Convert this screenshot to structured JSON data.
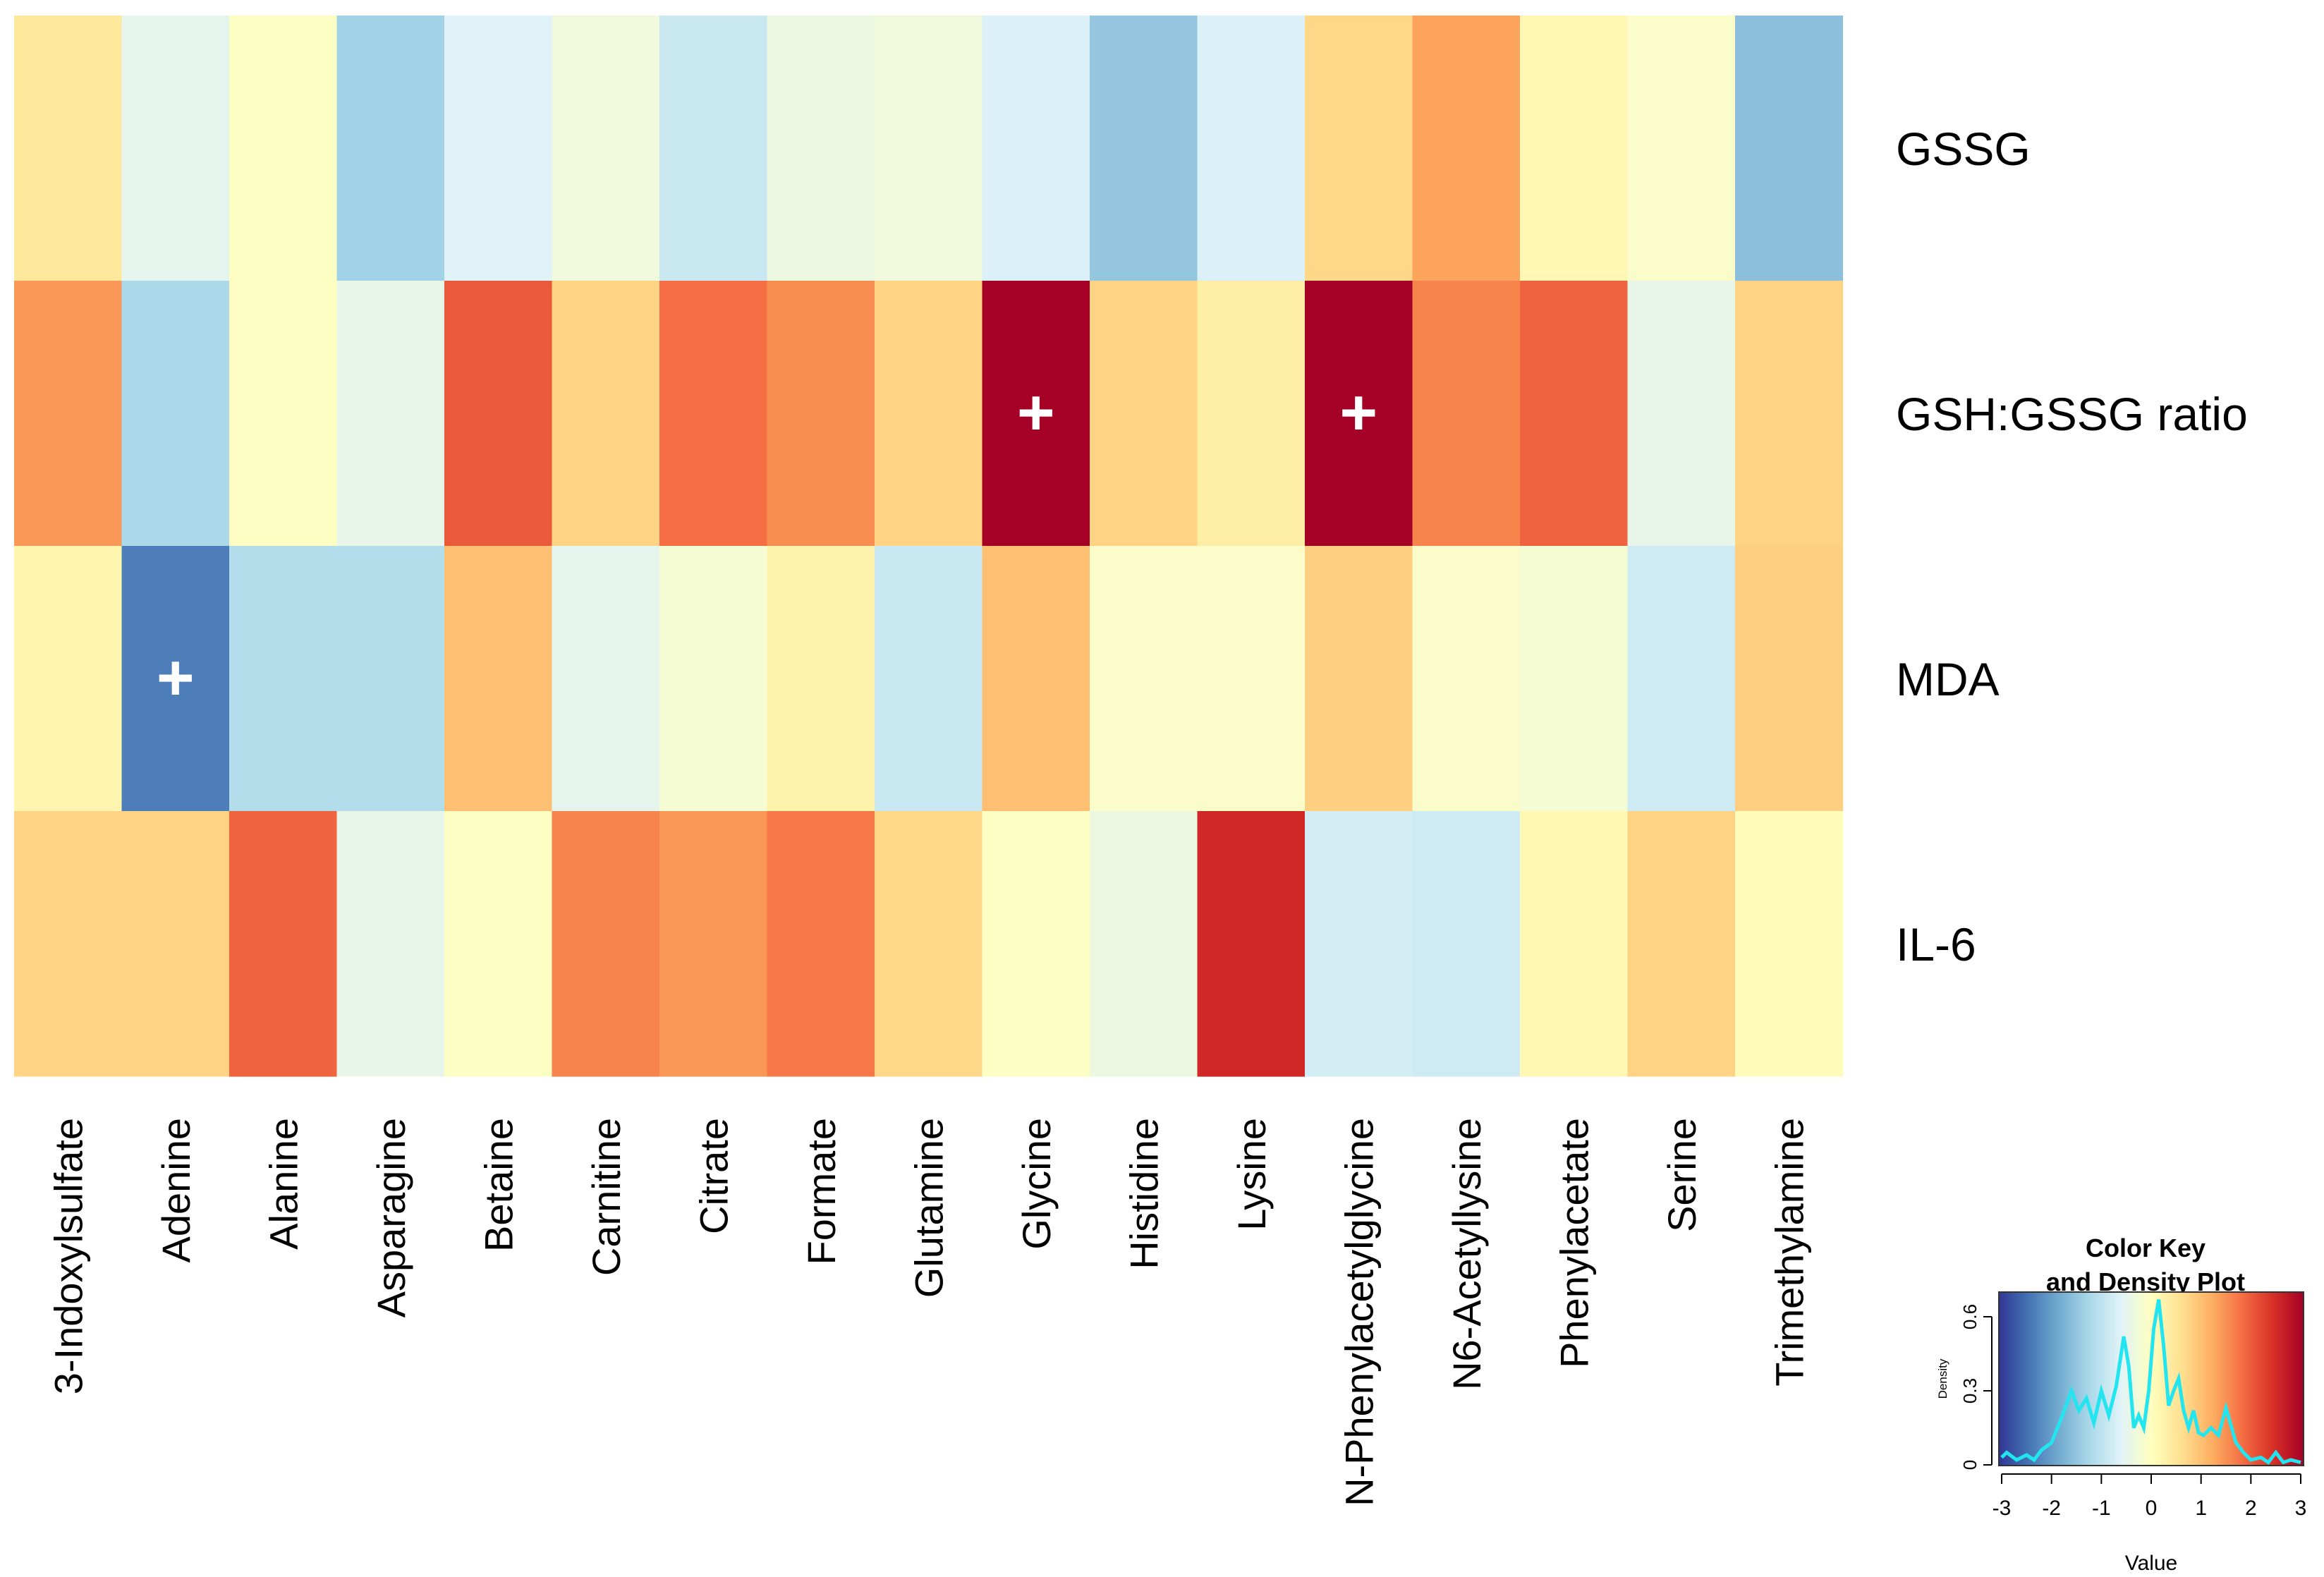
{
  "chart_data": {
    "type": "heatmap",
    "rows": [
      "GSSG",
      "GSH:GSSG ratio",
      "MDA",
      "IL-6"
    ],
    "columns": [
      "3-Indoxylsulfate",
      "Adenine",
      "Alanine",
      "Asparagine",
      "Betaine",
      "Carnitine",
      "Citrate",
      "Formate",
      "Glutamine",
      "Glycine",
      "Histidine",
      "Lysine",
      "N-Phenylacetylglycine",
      "N6-Acetyllysine",
      "Phenylacetate",
      "Serine",
      "Trimethylamine"
    ],
    "values": [
      [
        0.45,
        -0.5,
        -0.05,
        -1.3,
        -0.6,
        -0.3,
        -0.85,
        -0.35,
        -0.3,
        -0.65,
        -1.45,
        -0.65,
        0.7,
        1.3,
        0.15,
        -0.1,
        -1.55
      ],
      [
        1.4,
        -1.2,
        -0.05,
        -0.45,
        2.0,
        0.75,
        1.8,
        1.5,
        0.75,
        3.0,
        0.75,
        0.35,
        3.2,
        1.6,
        1.9,
        -0.45,
        0.75
      ],
      [
        0.2,
        -2.3,
        -1.1,
        -1.1,
        1.0,
        -0.5,
        -0.2,
        0.25,
        -0.85,
        1.0,
        -0.1,
        -0.1,
        0.8,
        -0.1,
        -0.2,
        -0.8,
        0.8
      ],
      [
        0.75,
        0.75,
        1.9,
        -0.45,
        -0.05,
        1.6,
        1.4,
        1.7,
        0.7,
        -0.05,
        -0.35,
        2.5,
        -0.75,
        -0.8,
        0.15,
        0.75,
        0.05
      ]
    ],
    "significance_marks": [
      {
        "row": "GSH:GSSG ratio",
        "column": "Glycine",
        "symbol": "+"
      },
      {
        "row": "GSH:GSSG ratio",
        "column": "N-Phenylacetylglycine",
        "symbol": "+"
      },
      {
        "row": "MDA",
        "column": "Adenine",
        "symbol": "+"
      }
    ],
    "color_key": {
      "title_line1": "Color Key",
      "title_line2": "and Density Plot",
      "xlabel": "Value",
      "ylabel": "Density",
      "xlim": [
        -3,
        3
      ],
      "x_ticks": [
        "-3",
        "-2",
        "-1",
        "0",
        "1",
        "2",
        "3"
      ],
      "ylim": [
        0,
        0.7
      ],
      "y_ticks": [
        "0",
        "0.3",
        "0.6"
      ],
      "colors": [
        "#313695",
        "#4575b4",
        "#74add1",
        "#abd9e9",
        "#e0f3f8",
        "#ffffbf",
        "#fee090",
        "#fdae61",
        "#f46d43",
        "#d73027",
        "#a50026"
      ],
      "density_color": "#22e5f0",
      "density": {
        "x": [
          -3.0,
          -2.9,
          -2.7,
          -2.5,
          -2.35,
          -2.2,
          -2.0,
          -1.8,
          -1.6,
          -1.45,
          -1.3,
          -1.15,
          -1.0,
          -0.85,
          -0.7,
          -0.55,
          -0.45,
          -0.35,
          -0.25,
          -0.15,
          -0.05,
          0.05,
          0.15,
          0.25,
          0.35,
          0.45,
          0.55,
          0.65,
          0.75,
          0.85,
          0.95,
          1.05,
          1.2,
          1.35,
          1.5,
          1.6,
          1.7,
          1.85,
          2.0,
          2.2,
          2.35,
          2.5,
          2.65,
          2.8,
          3.0
        ],
        "y": [
          0.03,
          0.05,
          0.02,
          0.04,
          0.02,
          0.06,
          0.09,
          0.19,
          0.3,
          0.22,
          0.27,
          0.17,
          0.3,
          0.2,
          0.32,
          0.52,
          0.4,
          0.15,
          0.2,
          0.15,
          0.3,
          0.55,
          0.67,
          0.48,
          0.24,
          0.3,
          0.35,
          0.22,
          0.15,
          0.22,
          0.13,
          0.12,
          0.15,
          0.12,
          0.23,
          0.16,
          0.09,
          0.05,
          0.02,
          0.03,
          0.01,
          0.05,
          0.01,
          0.02,
          0.01
        ]
      }
    }
  }
}
